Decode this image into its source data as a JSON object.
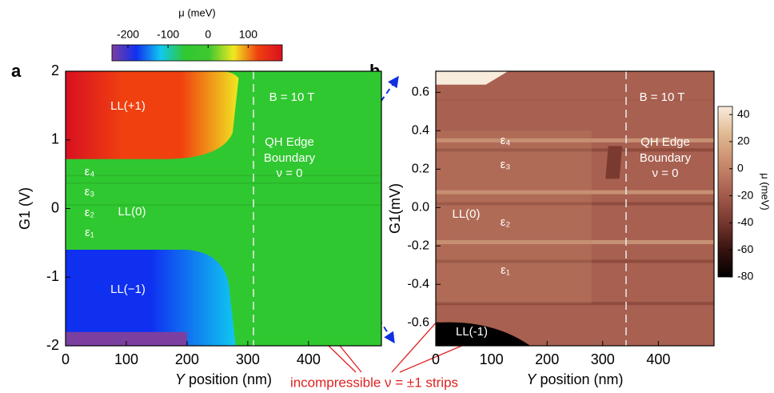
{
  "panel_labels": [
    "a",
    "b"
  ],
  "annotation": "incompressible ν = ±1 strips",
  "chart_data": [
    {
      "type": "heatmap",
      "xlabel": {
        "symbol": "Y",
        "text": "position (nm)"
      },
      "ylabel": "G1 (V)",
      "xlim": [
        0,
        520
      ],
      "xticks": [
        0,
        100,
        200,
        300,
        400
      ],
      "ylim": [
        -2,
        2
      ],
      "yticks": [
        -2,
        -1,
        0,
        1,
        2
      ],
      "colorbar": {
        "label": "μ (meV)",
        "lim": [
          -240,
          185
        ],
        "ticks": [
          -200,
          -100,
          0,
          100
        ],
        "colormap": [
          "#7b3fa0",
          "#1030f0",
          "#10c8f0",
          "#30c830",
          "#40c830",
          "#f0e820",
          "#f04010",
          "#d81020"
        ]
      },
      "annotations": [
        "LL(+1)",
        "LL(0)",
        "LL(−1)",
        "ε₄",
        "ε₃",
        "ε₂",
        "ε₁",
        "B = 10 T",
        "QH Edge",
        "Boundary",
        "ν = 0"
      ]
    },
    {
      "type": "heatmap",
      "xlabel": {
        "symbol": "Y",
        "text": "position (nm)"
      },
      "ylabel": "G1(mV)",
      "xlim": [
        0,
        500
      ],
      "xticks": [
        0,
        100,
        200,
        300,
        400
      ],
      "ylim": [
        -0.72,
        0.71
      ],
      "yticks": [
        -0.6,
        -0.4,
        -0.2,
        {
          "value": 0,
          "label": "0.0"
        },
        0.2,
        0.4,
        0.6
      ],
      "colorbar": {
        "label": "μ (meV)",
        "lim": [
          -80,
          46
        ],
        "ticks": [
          40,
          20,
          0,
          -20,
          -40,
          -60,
          -80
        ],
        "colormap": [
          "#000000",
          "#3a1410",
          "#7a3a30",
          "#a86050",
          "#c88a6c",
          "#e0b890",
          "#f8ecdc"
        ]
      },
      "annotations": [
        "ε₄",
        "ε₃",
        "LL(0)",
        "ε₂",
        "ε₁",
        "LL(-1)",
        "B = 10 T",
        "QH Edge",
        "Boundary",
        "ν = 0"
      ]
    }
  ]
}
